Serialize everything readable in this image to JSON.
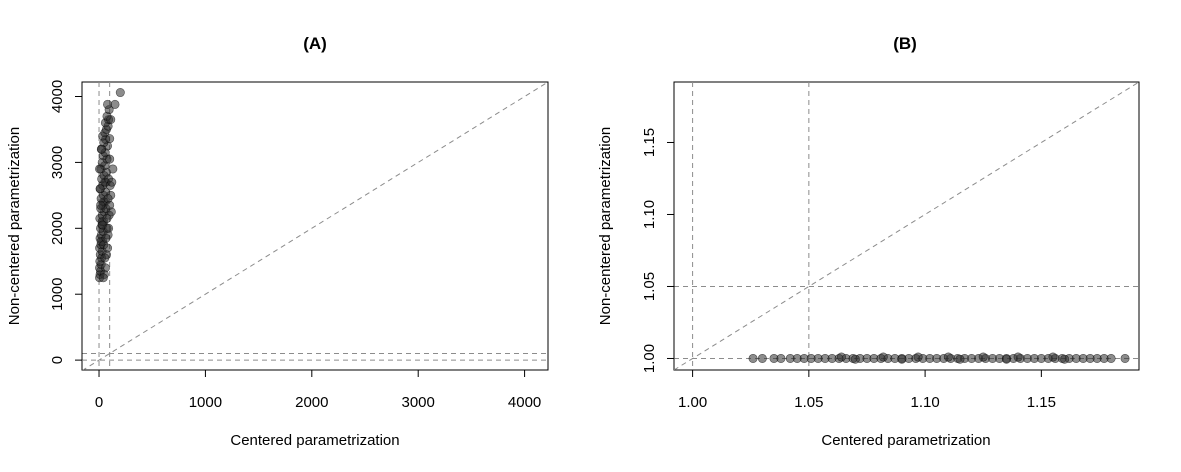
{
  "chart_data": [
    {
      "type": "scatter",
      "title": "(A)",
      "xlabel": "Centered parametrization",
      "ylabel": "Non-centered parametrization",
      "xlim": [
        -160,
        4220
      ],
      "ylim": [
        -150,
        4220
      ],
      "xticks": [
        0,
        1000,
        2000,
        3000,
        4000
      ],
      "yticks": [
        0,
        1000,
        2000,
        3000,
        4000
      ],
      "xtick_labels": [
        "0",
        "1000",
        "2000",
        "3000",
        "4000"
      ],
      "ytick_labels": [
        "0",
        "1000",
        "2000",
        "3000",
        "4000"
      ],
      "reference_lines": {
        "identity": true,
        "vertical": [
          0,
          100
        ],
        "horizontal": [
          0,
          100
        ]
      },
      "grid": false,
      "points": [
        [
          5,
          1250
        ],
        [
          10,
          1300
        ],
        [
          15,
          1350
        ],
        [
          5,
          1400
        ],
        [
          20,
          1450
        ],
        [
          8,
          1500
        ],
        [
          25,
          1550
        ],
        [
          12,
          1600
        ],
        [
          30,
          1650
        ],
        [
          6,
          1700
        ],
        [
          18,
          1750
        ],
        [
          35,
          1800
        ],
        [
          10,
          1850
        ],
        [
          22,
          1900
        ],
        [
          40,
          1950
        ],
        [
          14,
          2000
        ],
        [
          28,
          2050
        ],
        [
          45,
          2100
        ],
        [
          8,
          2150
        ],
        [
          32,
          2200
        ],
        [
          50,
          2250
        ],
        [
          16,
          2300
        ],
        [
          38,
          2350
        ],
        [
          55,
          2400
        ],
        [
          20,
          2450
        ],
        [
          42,
          2500
        ],
        [
          60,
          2550
        ],
        [
          12,
          2600
        ],
        [
          35,
          2650
        ],
        [
          65,
          2700
        ],
        [
          25,
          2750
        ],
        [
          48,
          2800
        ],
        [
          70,
          2850
        ],
        [
          18,
          2900
        ],
        [
          52,
          2950
        ],
        [
          30,
          3000
        ],
        [
          75,
          3050
        ],
        [
          40,
          3100
        ],
        [
          58,
          3150
        ],
        [
          22,
          3200
        ],
        [
          80,
          3250
        ],
        [
          45,
          3300
        ],
        [
          62,
          3350
        ],
        [
          100,
          3360
        ],
        [
          35,
          3400
        ],
        [
          55,
          3450
        ],
        [
          70,
          3500
        ],
        [
          85,
          3550
        ],
        [
          60,
          3600
        ],
        [
          90,
          3650
        ],
        [
          75,
          3700
        ],
        [
          110,
          3650
        ],
        [
          95,
          3800
        ],
        [
          80,
          3880
        ],
        [
          150,
          3880
        ],
        [
          200,
          4060
        ],
        [
          130,
          2900
        ],
        [
          110,
          2500
        ],
        [
          95,
          2200
        ],
        [
          85,
          1900
        ],
        [
          70,
          1600
        ],
        [
          60,
          1400
        ],
        [
          50,
          1300
        ],
        [
          40,
          1250
        ],
        [
          30,
          2100
        ],
        [
          45,
          2400
        ],
        [
          55,
          2700
        ],
        [
          65,
          2300
        ],
        [
          75,
          2000
        ],
        [
          20,
          1800
        ],
        [
          10,
          2600
        ],
        [
          5,
          2900
        ],
        [
          25,
          3200
        ],
        [
          15,
          2350
        ],
        [
          35,
          2050
        ],
        [
          45,
          1750
        ],
        [
          55,
          1550
        ],
        [
          65,
          1850
        ],
        [
          75,
          2150
        ],
        [
          85,
          2450
        ],
        [
          90,
          2750
        ],
        [
          100,
          3050
        ],
        [
          105,
          2650
        ],
        [
          115,
          2250
        ],
        [
          120,
          2700
        ],
        [
          100,
          2350
        ],
        [
          90,
          2000
        ],
        [
          80,
          1700
        ]
      ]
    },
    {
      "type": "scatter",
      "title": "(B)",
      "xlabel": "Centered parametrization",
      "ylabel": "Non-centered parametrization",
      "xlim": [
        0.992,
        1.192
      ],
      "ylim": [
        0.992,
        1.192
      ],
      "xticks": [
        1.0,
        1.05,
        1.1,
        1.15
      ],
      "yticks": [
        1.0,
        1.05,
        1.1,
        1.15
      ],
      "xtick_labels": [
        "1.00",
        "1.05",
        "1.10",
        "1.15"
      ],
      "ytick_labels": [
        "1.00",
        "1.05",
        "1.10",
        "1.15"
      ],
      "reference_lines": {
        "identity": true,
        "vertical": [
          1.0,
          1.05
        ],
        "horizontal": [
          1.0,
          1.05
        ]
      },
      "grid": false,
      "points": [
        [
          1.026,
          1.0
        ],
        [
          1.03,
          1.0
        ],
        [
          1.035,
          1.0
        ],
        [
          1.038,
          1.0
        ],
        [
          1.042,
          1.0
        ],
        [
          1.045,
          1.0
        ],
        [
          1.048,
          1.0
        ],
        [
          1.051,
          1.0
        ],
        [
          1.054,
          1.0
        ],
        [
          1.057,
          1.0
        ],
        [
          1.06,
          1.0
        ],
        [
          1.063,
          1.0
        ],
        [
          1.066,
          1.0
        ],
        [
          1.069,
          1.0
        ],
        [
          1.072,
          1.0
        ],
        [
          1.075,
          1.0
        ],
        [
          1.078,
          1.0
        ],
        [
          1.081,
          1.0
        ],
        [
          1.084,
          1.0
        ],
        [
          1.087,
          1.0
        ],
        [
          1.09,
          1.0
        ],
        [
          1.093,
          1.0
        ],
        [
          1.096,
          1.0
        ],
        [
          1.099,
          1.0
        ],
        [
          1.102,
          1.0
        ],
        [
          1.105,
          1.0
        ],
        [
          1.108,
          1.0
        ],
        [
          1.111,
          1.0
        ],
        [
          1.114,
          1.0
        ],
        [
          1.117,
          1.0
        ],
        [
          1.12,
          1.0
        ],
        [
          1.123,
          1.0
        ],
        [
          1.126,
          1.0
        ],
        [
          1.129,
          1.0
        ],
        [
          1.132,
          1.0
        ],
        [
          1.135,
          1.0
        ],
        [
          1.138,
          1.0
        ],
        [
          1.141,
          1.0
        ],
        [
          1.144,
          1.0
        ],
        [
          1.147,
          1.0
        ],
        [
          1.15,
          1.0
        ],
        [
          1.153,
          1.0
        ],
        [
          1.156,
          1.0
        ],
        [
          1.159,
          1.0
        ],
        [
          1.162,
          1.0
        ],
        [
          1.165,
          1.0
        ],
        [
          1.168,
          1.0
        ],
        [
          1.171,
          1.0
        ],
        [
          1.174,
          1.0
        ],
        [
          1.177,
          1.0
        ],
        [
          1.18,
          1.0
        ],
        [
          1.186,
          1.0
        ],
        [
          1.064,
          1.001
        ],
        [
          1.082,
          1.001
        ],
        [
          1.097,
          1.001
        ],
        [
          1.11,
          1.001
        ],
        [
          1.125,
          1.001
        ],
        [
          1.14,
          1.001
        ],
        [
          1.155,
          1.001
        ],
        [
          1.07,
          0.9995
        ],
        [
          1.09,
          0.9995
        ],
        [
          1.115,
          0.9995
        ],
        [
          1.135,
          0.9995
        ],
        [
          1.16,
          0.9995
        ]
      ]
    }
  ]
}
